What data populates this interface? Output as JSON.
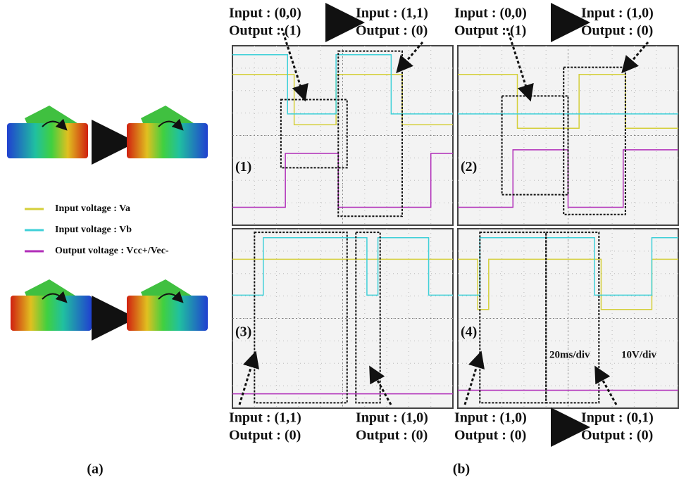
{
  "legend": [
    {
      "label": "Input voltage : Va",
      "color": "#d4cf3a"
    },
    {
      "label": "Input voltage : Vb",
      "color": "#3fd0d8"
    },
    {
      "label": "Output voltage : Vcc+/Vec-",
      "color": "#b02cb8"
    }
  ],
  "captions": {
    "a": "(a)",
    "b": "(b)"
  },
  "scale": {
    "time": "20ms/div",
    "voltage": "10V/div"
  },
  "scopes": [
    {
      "label": "(1)",
      "states": [
        {
          "input": "Input : (0,0)",
          "output": "Output : (1)"
        },
        {
          "input": "Input : (1,1)",
          "output": "Output : (0)"
        }
      ]
    },
    {
      "label": "(2)",
      "states": [
        {
          "input": "Input : (0,0)",
          "output": "Output : (1)"
        },
        {
          "input": "Input : (1,0)",
          "output": "Output : (0)"
        }
      ]
    },
    {
      "label": "(3)",
      "states": [
        {
          "input": "Input : (1,1)",
          "output": "Output : (0)"
        },
        {
          "input": "Input : (1,0)",
          "output": "Output : (0)"
        }
      ]
    },
    {
      "label": "(4)",
      "states": [
        {
          "input": "Input : (1,0)",
          "output": "Output : (0)"
        },
        {
          "input": "Input : (0,1)",
          "output": "Output : (0)"
        }
      ]
    }
  ]
}
